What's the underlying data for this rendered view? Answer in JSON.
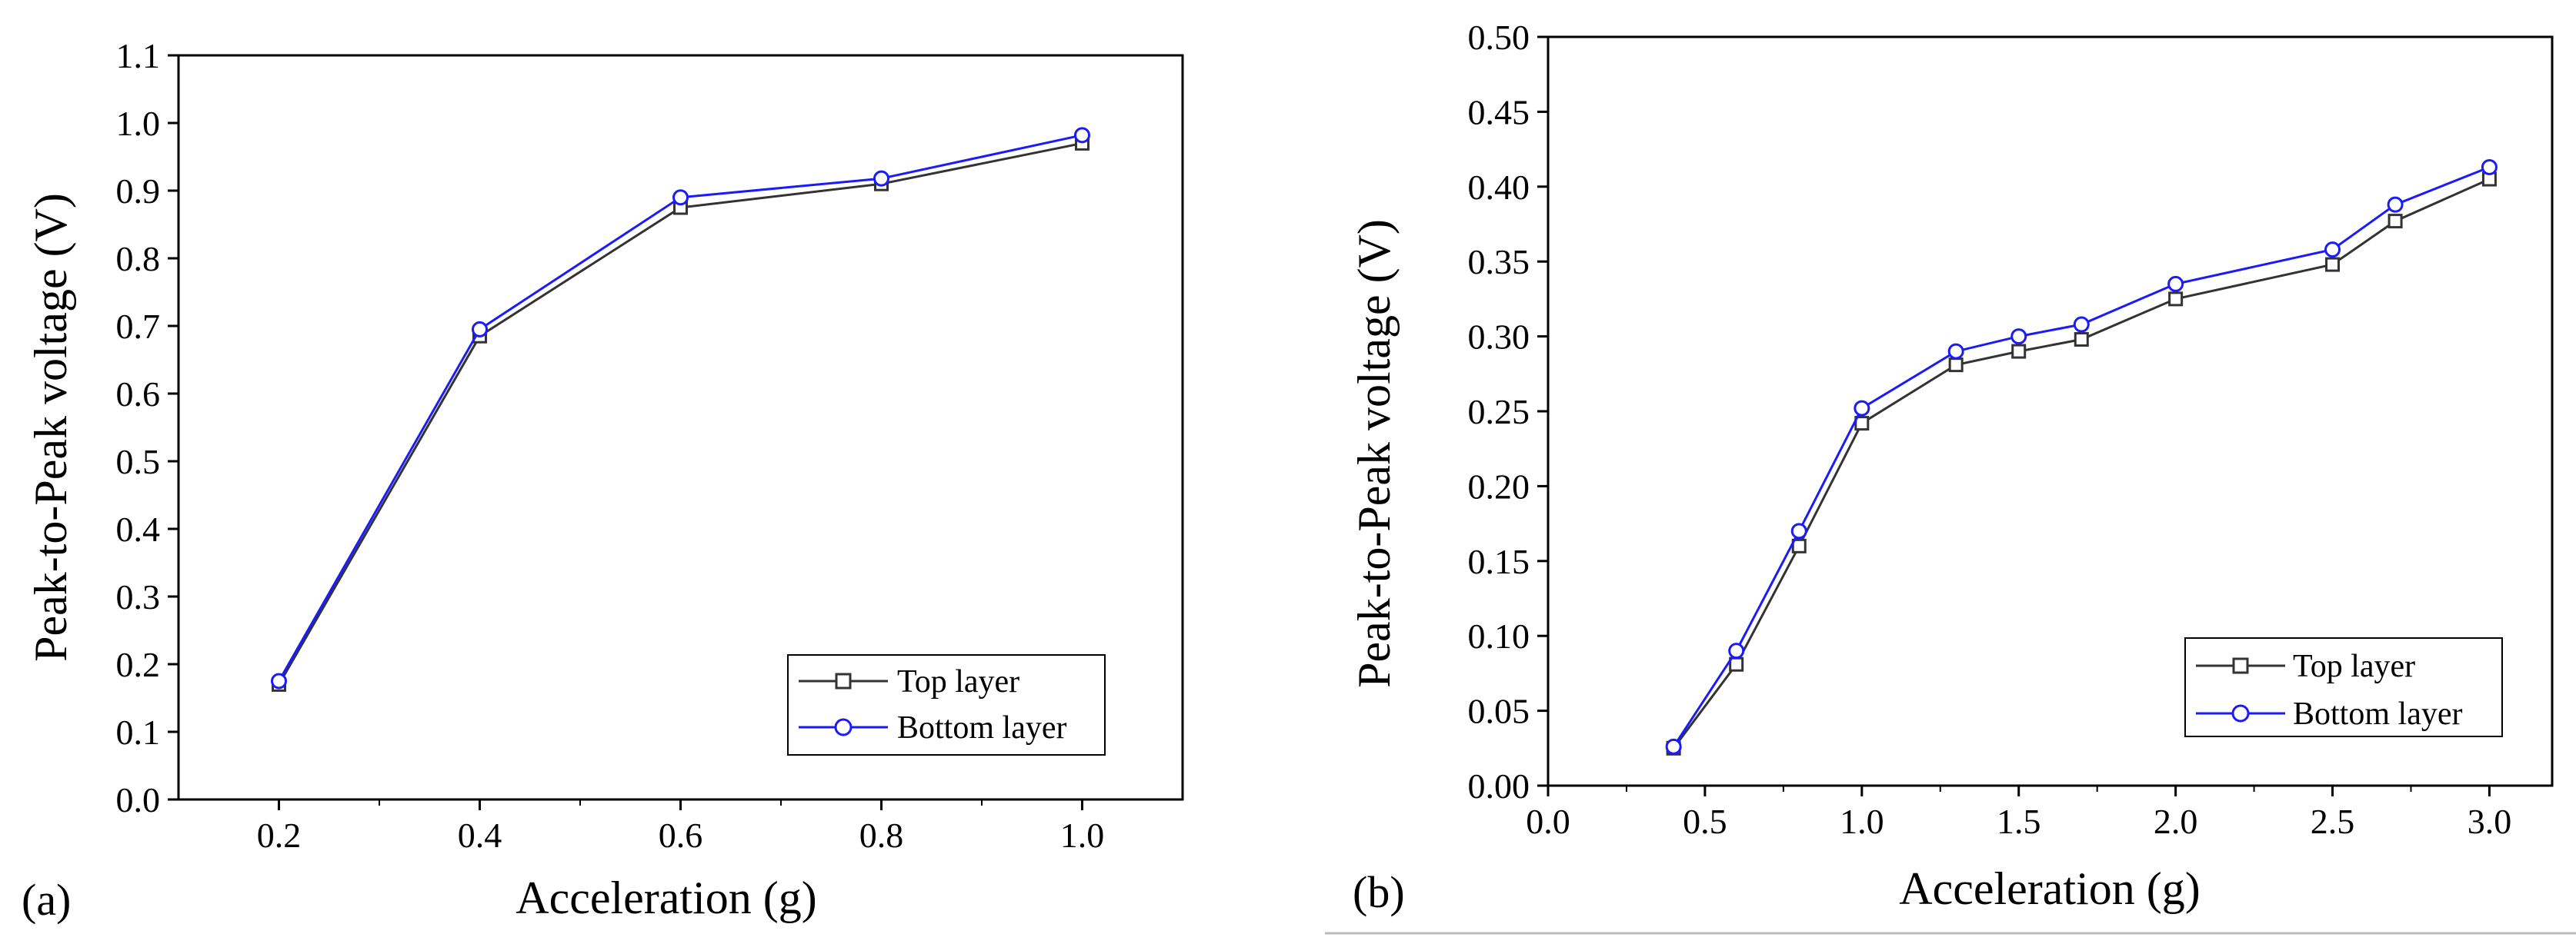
{
  "chart_data": [
    {
      "type": "line",
      "panel_label": "(a)",
      "xlabel": "Acceleration (g)",
      "ylabel": "Peak-to-Peak voltage (V)",
      "xlim": [
        0.1,
        1.1
      ],
      "ylim": [
        0.0,
        1.1
      ],
      "xticks": [
        0.2,
        0.4,
        0.6,
        0.8,
        1.0
      ],
      "xtick_labels": [
        "0.2",
        "0.4",
        "0.6",
        "0.8",
        "1.0"
      ],
      "yticks": [
        0.0,
        0.1,
        0.2,
        0.3,
        0.4,
        0.5,
        0.6,
        0.7,
        0.8,
        0.9,
        1.0,
        1.1
      ],
      "ytick_labels": [
        "0.0",
        "0.1",
        "0.2",
        "0.3",
        "0.4",
        "0.5",
        "0.6",
        "0.7",
        "0.8",
        "0.9",
        "1.0",
        "1.1"
      ],
      "legend_position": "bottom-right",
      "series": [
        {
          "name": "Top layer",
          "color": "#333333",
          "marker": "square",
          "x": [
            0.2,
            0.4,
            0.6,
            0.8,
            1.0
          ],
          "y": [
            0.17,
            0.685,
            0.875,
            0.91,
            0.97
          ]
        },
        {
          "name": "Bottom layer",
          "color": "#1a1aff",
          "marker": "circle",
          "x": [
            0.2,
            0.4,
            0.6,
            0.8,
            1.0
          ],
          "y": [
            0.175,
            0.695,
            0.89,
            0.918,
            0.982
          ]
        }
      ]
    },
    {
      "type": "line",
      "panel_label": "(b)",
      "xlabel": "Acceleration (g)",
      "ylabel": "Peak-to-Peak voltage (V)",
      "xlim": [
        0.0,
        3.2
      ],
      "ylim": [
        0.0,
        0.5
      ],
      "xticks": [
        0.0,
        0.5,
        1.0,
        1.5,
        2.0,
        2.5,
        3.0
      ],
      "xtick_labels": [
        "0.0",
        "0.5",
        "1.0",
        "1.5",
        "2.0",
        "2.5",
        "3.0"
      ],
      "yticks": [
        0.0,
        0.05,
        0.1,
        0.15,
        0.2,
        0.25,
        0.3,
        0.35,
        0.4,
        0.45,
        0.5
      ],
      "ytick_labels": [
        "0.00",
        "0.05",
        "0.10",
        "0.15",
        "0.20",
        "0.25",
        "0.30",
        "0.35",
        "0.40",
        "0.45",
        "0.50"
      ],
      "legend_position": "bottom-right",
      "series": [
        {
          "name": "Top layer",
          "color": "#333333",
          "marker": "square",
          "x": [
            0.4,
            0.6,
            0.8,
            1.0,
            1.3,
            1.5,
            1.7,
            2.0,
            2.5,
            2.7,
            3.0
          ],
          "y": [
            0.025,
            0.081,
            0.16,
            0.242,
            0.281,
            0.29,
            0.298,
            0.325,
            0.348,
            0.377,
            0.405
          ]
        },
        {
          "name": "Bottom layer",
          "color": "#1a1aff",
          "marker": "circle",
          "x": [
            0.4,
            0.6,
            0.8,
            1.0,
            1.3,
            1.5,
            1.7,
            2.0,
            2.5,
            2.7,
            3.0
          ],
          "y": [
            0.026,
            0.09,
            0.17,
            0.252,
            0.29,
            0.3,
            0.308,
            0.335,
            0.358,
            0.388,
            0.413
          ]
        }
      ]
    }
  ]
}
